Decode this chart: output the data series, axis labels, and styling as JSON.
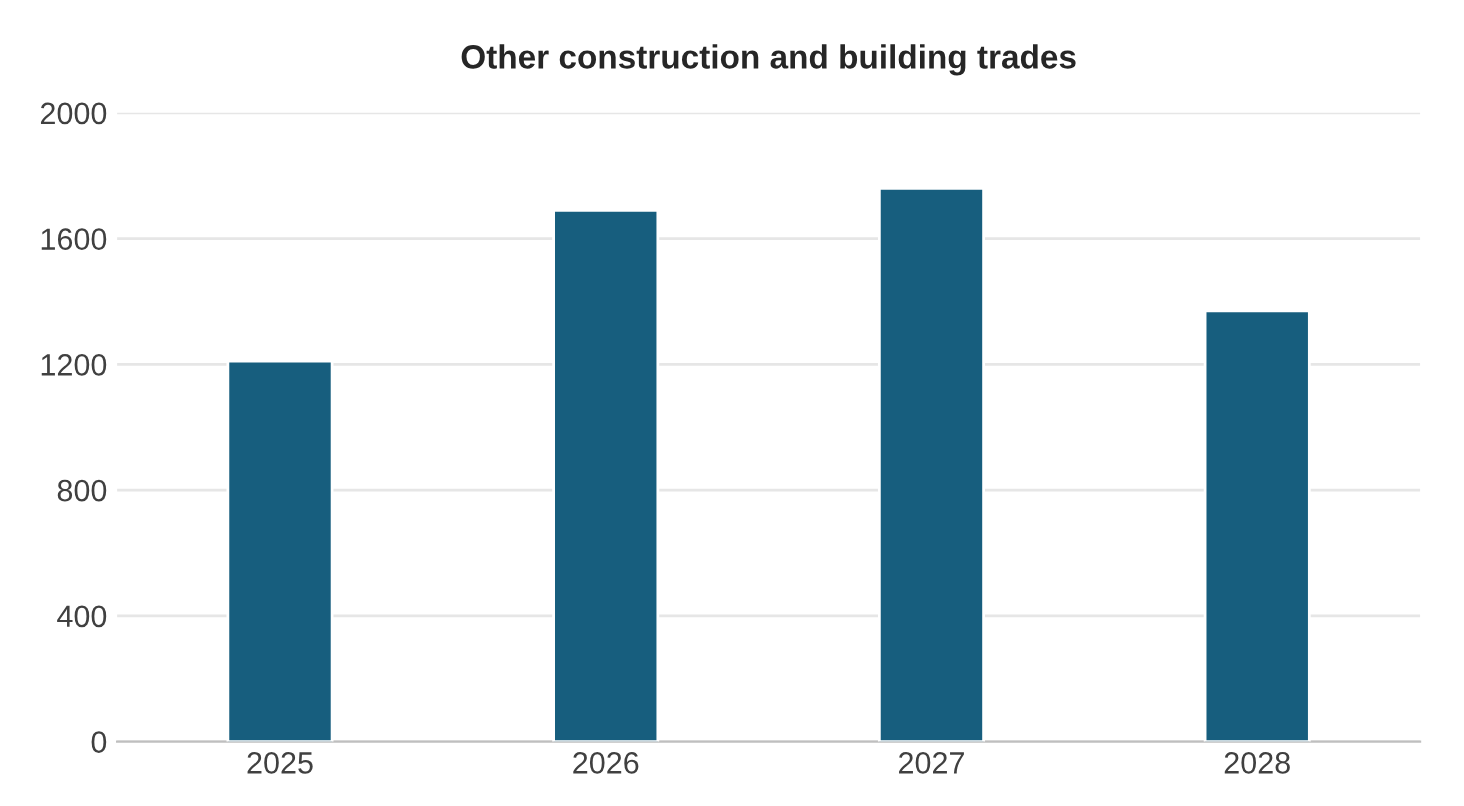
{
  "chart_data": {
    "type": "bar",
    "title": "Other construction and building trades",
    "categories": [
      "2025",
      "2026",
      "2027",
      "2028"
    ],
    "values": [
      1210,
      1690,
      1760,
      1370
    ],
    "color": "#175e7e",
    "ylim": [
      0,
      2000
    ],
    "yticks": [
      0,
      400,
      800,
      1200,
      1600,
      2000
    ],
    "grid": "y"
  }
}
